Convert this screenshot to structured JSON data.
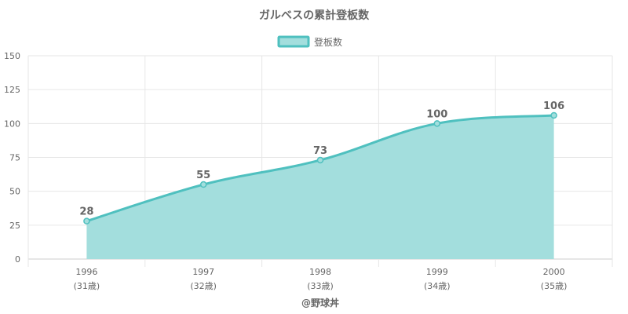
{
  "chart_data": {
    "type": "area",
    "title": "ガルベスの累計登板数",
    "series": [
      {
        "name": "登板数",
        "values": [
          28,
          55,
          73,
          100,
          106
        ]
      }
    ],
    "categories": [
      "1996",
      "1997",
      "1998",
      "1999",
      "2000"
    ],
    "ages": [
      "(31歳)",
      "(32歳)",
      "(33歳)",
      "(34歳)",
      "(35歳)"
    ],
    "ylim": [
      0,
      150
    ],
    "yticks": [
      0,
      25,
      50,
      75,
      100,
      125,
      150
    ],
    "grid": true,
    "legend_position": "top"
  },
  "colors": {
    "line": "#4fc0bf",
    "fill": "#a3dedd",
    "grid": "#e6e6e6",
    "text": "#666666"
  },
  "credit": "@野球丼"
}
